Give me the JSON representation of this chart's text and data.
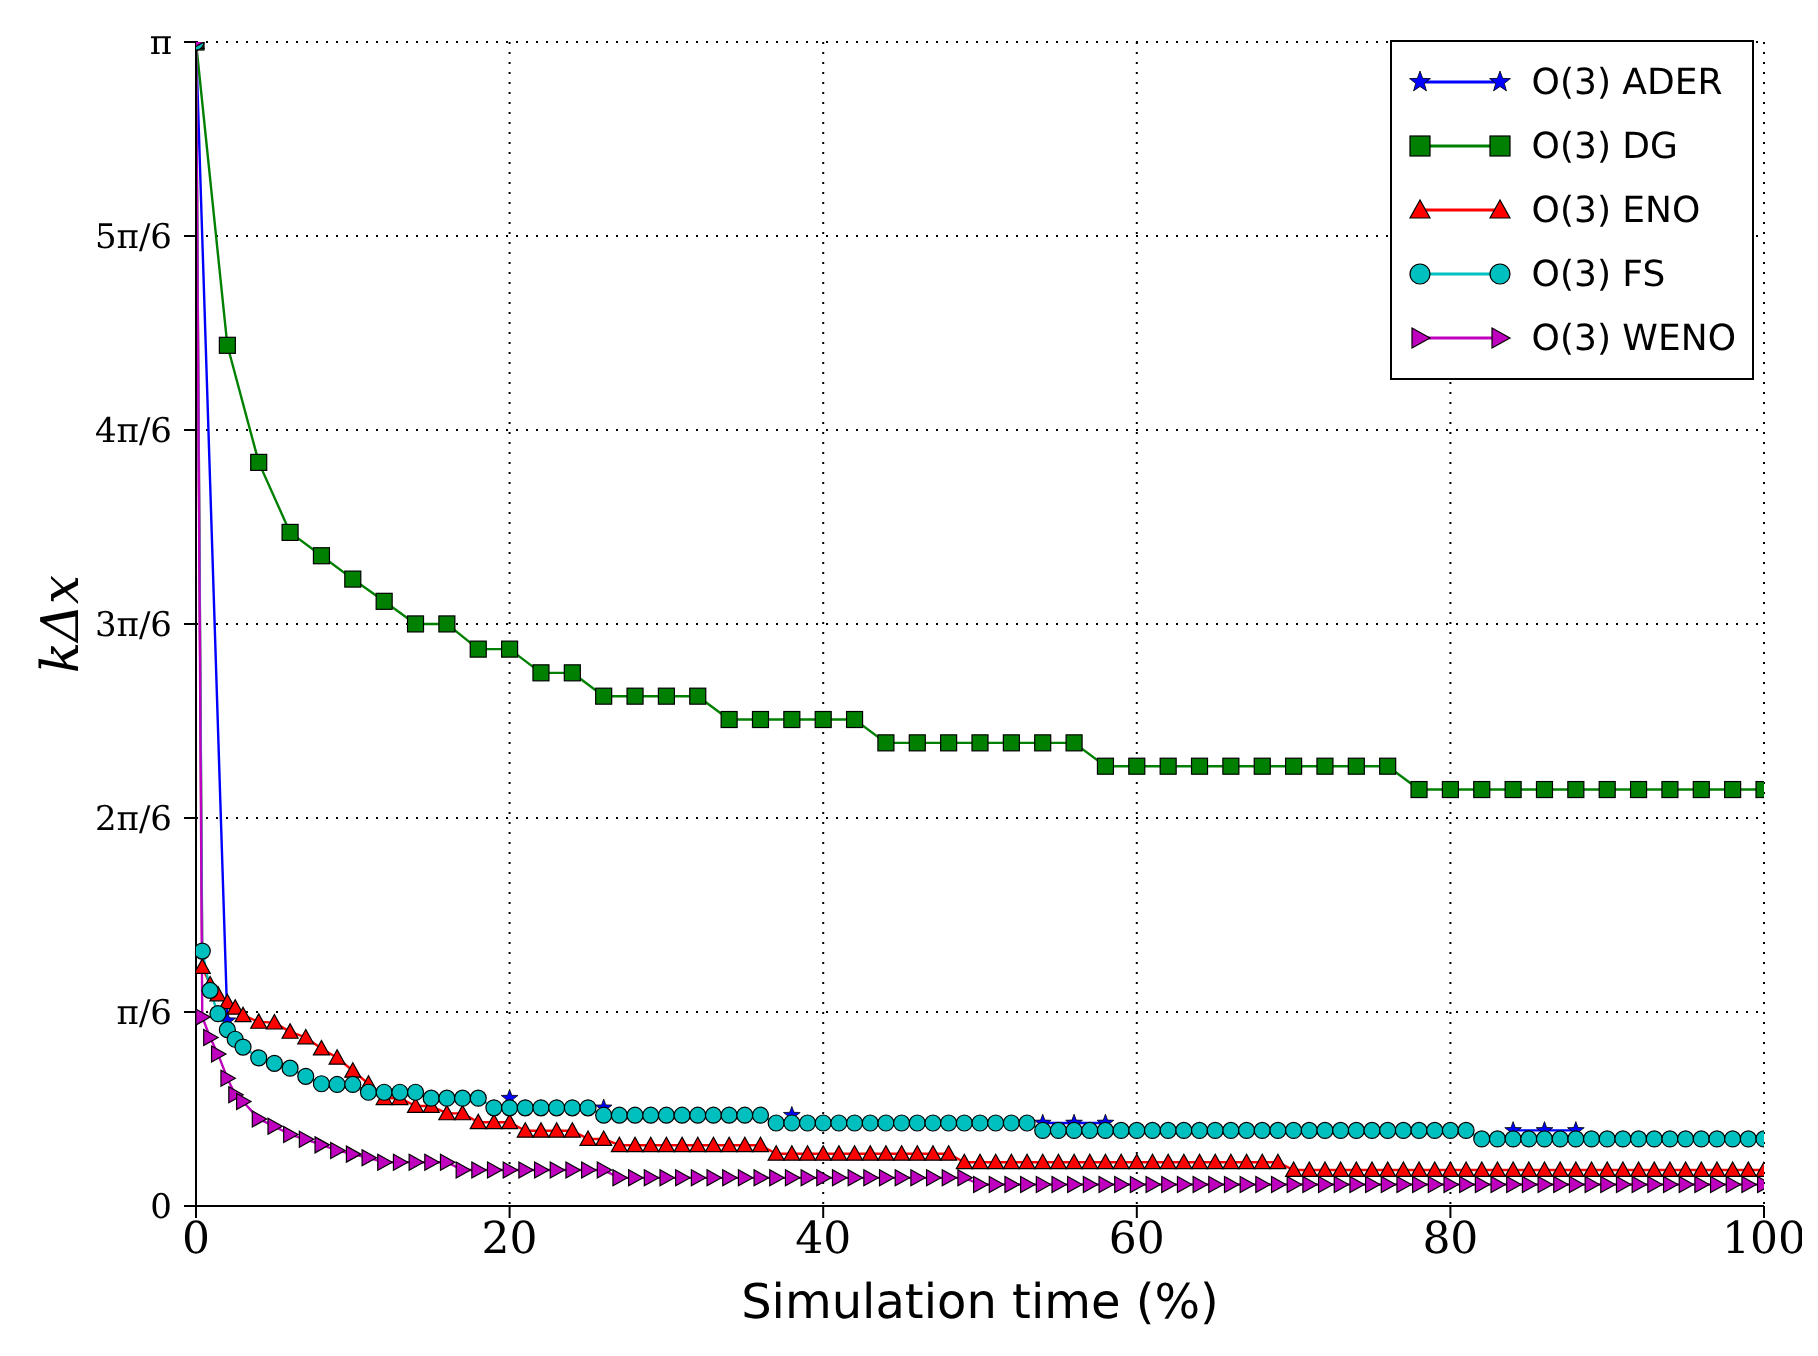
{
  "chart_data": {
    "type": "line",
    "xlabel": "Simulation time (%)",
    "ylabel": "kΔx",
    "xlim": [
      0,
      100
    ],
    "xticks": [
      0,
      20,
      40,
      60,
      80,
      100
    ],
    "ylim": [
      0,
      3.1416
    ],
    "yticks": [
      0,
      {
        "value": 0.5236,
        "label": "π/6"
      },
      {
        "value": 1.0472,
        "label": "2π/6"
      },
      {
        "value": 1.5708,
        "label": "3π/6"
      },
      {
        "value": 2.0944,
        "label": "4π/6"
      },
      {
        "value": 2.618,
        "label": "5π/6"
      },
      {
        "value": 3.1416,
        "label": "π"
      }
    ],
    "grid": true,
    "legend": "top right",
    "line_style": "solid",
    "series": [
      {
        "name": "O(3) ADER",
        "color": "#0000ff",
        "marker": "star",
        "x": [
          0,
          2,
          4,
          6,
          8,
          10,
          12,
          14,
          16,
          18,
          20,
          22,
          24,
          26,
          28,
          30,
          32,
          34,
          36,
          38,
          40,
          42,
          44,
          46,
          48,
          50,
          52,
          54,
          56,
          58,
          60,
          62,
          64,
          66,
          68,
          70,
          72,
          74,
          76,
          78,
          80,
          82,
          84,
          86,
          88
        ],
        "values": [
          3.1416,
          0.5,
          null,
          null,
          null,
          null,
          null,
          null,
          null,
          null,
          0.291,
          null,
          null,
          0.265,
          null,
          null,
          null,
          null,
          null,
          0.245,
          null,
          null,
          null,
          null,
          null,
          null,
          null,
          0.224,
          0.224,
          0.224,
          null,
          null,
          null,
          null,
          null,
          null,
          null,
          null,
          null,
          null,
          null,
          null,
          0.204,
          0.204,
          0.204
        ]
      },
      {
        "name": "O(3) DG",
        "color": "#008000",
        "marker": "square",
        "x": [
          0,
          2,
          4,
          6,
          8,
          10,
          12,
          14,
          16,
          18,
          20,
          22,
          24,
          26,
          28,
          30,
          32,
          34,
          36,
          38,
          40,
          42,
          44,
          46,
          48,
          50,
          52,
          54,
          56,
          58,
          60,
          62,
          64,
          66,
          68,
          70,
          72,
          74,
          76,
          78,
          80,
          82,
          84,
          86,
          88,
          90,
          92,
          94,
          96,
          98,
          100
        ],
        "values": [
          3.1416,
          2.323,
          2.007,
          1.818,
          1.755,
          1.692,
          1.632,
          1.571,
          1.571,
          1.503,
          1.503,
          1.439,
          1.439,
          1.376,
          1.376,
          1.376,
          1.376,
          1.313,
          1.313,
          1.313,
          1.313,
          1.313,
          1.25,
          1.25,
          1.25,
          1.25,
          1.25,
          1.25,
          1.25,
          1.187,
          1.187,
          1.187,
          1.187,
          1.187,
          1.187,
          1.187,
          1.187,
          1.187,
          1.187,
          1.124,
          1.124,
          1.124,
          1.124,
          1.124,
          1.124,
          1.124,
          1.124,
          1.124,
          1.124,
          1.124,
          1.124
        ]
      },
      {
        "name": "O(3) ENO",
        "color": "#ff0000",
        "marker": "triangle",
        "x": [
          0,
          0.4,
          0.9,
          1.4,
          2,
          2.5,
          3,
          4,
          5,
          6,
          7,
          8,
          9,
          10,
          11,
          12,
          13,
          14,
          15,
          16,
          17,
          18,
          19,
          20,
          21,
          22,
          23,
          24,
          25,
          26,
          27,
          28,
          29,
          30,
          31,
          32,
          33,
          34,
          35,
          36,
          37,
          38,
          39,
          40,
          41,
          42,
          43,
          44,
          45,
          46,
          47,
          48,
          49,
          50,
          51,
          52,
          53,
          54,
          55,
          56,
          57,
          58,
          59,
          60,
          61,
          62,
          63,
          64,
          65,
          66,
          67,
          68,
          69,
          70,
          71,
          72,
          73,
          74,
          75,
          76,
          77,
          78,
          79,
          80,
          81,
          82,
          83,
          84,
          85,
          86,
          87,
          88,
          89,
          90,
          91,
          92,
          93,
          94,
          95,
          96,
          97,
          98,
          99,
          100
        ],
        "values": [
          3.1416,
          0.645,
          0.598,
          0.571,
          0.55,
          0.535,
          0.515,
          0.497,
          0.495,
          0.47,
          0.455,
          0.425,
          0.4,
          0.365,
          0.33,
          0.291,
          0.291,
          0.27,
          0.27,
          0.25,
          0.25,
          0.226,
          0.226,
          0.226,
          0.203,
          0.203,
          0.203,
          0.203,
          0.181,
          0.181,
          0.164,
          0.164,
          0.164,
          0.164,
          0.164,
          0.164,
          0.164,
          0.164,
          0.164,
          0.164,
          0.141,
          0.141,
          0.141,
          0.141,
          0.141,
          0.141,
          0.141,
          0.141,
          0.141,
          0.141,
          0.141,
          0.141,
          0.118,
          0.118,
          0.118,
          0.118,
          0.118,
          0.118,
          0.118,
          0.118,
          0.118,
          0.118,
          0.118,
          0.118,
          0.118,
          0.118,
          0.118,
          0.118,
          0.118,
          0.118,
          0.118,
          0.118,
          0.118,
          0.097,
          0.097,
          0.097,
          0.097,
          0.097,
          0.097,
          0.097,
          0.097,
          0.097,
          0.097,
          0.097,
          0.097,
          0.097,
          0.097,
          0.097,
          0.097,
          0.097,
          0.097,
          0.097,
          0.097,
          0.097,
          0.097,
          0.097,
          0.097,
          0.097,
          0.097,
          0.097,
          0.097,
          0.097,
          0.097,
          0.097
        ]
      },
      {
        "name": "O(3) FS",
        "color": "#00bfbf",
        "marker": "circle",
        "x": [
          0,
          0.4,
          0.9,
          1.4,
          2,
          2.5,
          3,
          4,
          5,
          6,
          7,
          8,
          9,
          10,
          11,
          12,
          13,
          14,
          15,
          16,
          17,
          18,
          19,
          20,
          21,
          22,
          23,
          24,
          25,
          26,
          27,
          28,
          29,
          30,
          31,
          32,
          33,
          34,
          35,
          36,
          37,
          38,
          39,
          40,
          41,
          42,
          43,
          44,
          45,
          46,
          47,
          48,
          49,
          50,
          51,
          52,
          53,
          54,
          55,
          56,
          57,
          58,
          59,
          60,
          61,
          62,
          63,
          64,
          65,
          66,
          67,
          68,
          69,
          70,
          71,
          72,
          73,
          74,
          75,
          76,
          77,
          78,
          79,
          80,
          81,
          82,
          83,
          84,
          85,
          86,
          87,
          88,
          89,
          90,
          91,
          92,
          93,
          94,
          95,
          96,
          97,
          98,
          99,
          100
        ],
        "values": [
          3.1416,
          0.688,
          0.582,
          0.519,
          0.476,
          0.45,
          0.429,
          0.4,
          0.385,
          0.372,
          0.35,
          0.33,
          0.328,
          0.328,
          0.307,
          0.307,
          0.307,
          0.307,
          0.291,
          0.291,
          0.291,
          0.291,
          0.265,
          0.265,
          0.265,
          0.265,
          0.265,
          0.265,
          0.265,
          0.245,
          0.245,
          0.245,
          0.245,
          0.245,
          0.245,
          0.245,
          0.245,
          0.245,
          0.245,
          0.245,
          0.224,
          0.224,
          0.224,
          0.224,
          0.224,
          0.224,
          0.224,
          0.224,
          0.224,
          0.224,
          0.224,
          0.224,
          0.224,
          0.224,
          0.224,
          0.224,
          0.224,
          0.204,
          0.204,
          0.204,
          0.204,
          0.204,
          0.204,
          0.204,
          0.204,
          0.204,
          0.204,
          0.204,
          0.204,
          0.204,
          0.204,
          0.204,
          0.204,
          0.204,
          0.204,
          0.204,
          0.204,
          0.204,
          0.204,
          0.204,
          0.204,
          0.204,
          0.204,
          0.204,
          0.204,
          0.181,
          0.181,
          0.181,
          0.181,
          0.181,
          0.181,
          0.181,
          0.181,
          0.181,
          0.181,
          0.181,
          0.181,
          0.181,
          0.181,
          0.181,
          0.181,
          0.181,
          0.181,
          0.181
        ]
      },
      {
        "name": "O(3) WENO",
        "color": "#bf00bf",
        "marker": "triangle-right",
        "x": [
          0,
          0.4,
          0.9,
          1.4,
          2,
          2.5,
          3,
          4,
          5,
          6,
          7,
          8,
          9,
          10,
          11,
          12,
          13,
          14,
          15,
          16,
          17,
          18,
          19,
          20,
          21,
          22,
          23,
          24,
          25,
          26,
          27,
          28,
          29,
          30,
          31,
          32,
          33,
          34,
          35,
          36,
          37,
          38,
          39,
          40,
          41,
          42,
          43,
          44,
          45,
          46,
          47,
          48,
          49,
          50,
          51,
          52,
          53,
          54,
          55,
          56,
          57,
          58,
          59,
          60,
          61,
          62,
          63,
          64,
          65,
          66,
          67,
          68,
          69,
          70,
          71,
          72,
          73,
          74,
          75,
          76,
          77,
          78,
          79,
          80,
          81,
          82,
          83,
          84,
          85,
          86,
          87,
          88,
          89,
          90,
          91,
          92,
          93,
          94,
          95,
          96,
          97,
          98,
          99,
          100
        ],
        "values": [
          3.1416,
          0.51,
          0.455,
          0.41,
          0.345,
          0.3,
          0.282,
          0.235,
          0.215,
          0.193,
          0.18,
          0.165,
          0.15,
          0.14,
          0.13,
          0.118,
          0.118,
          0.118,
          0.118,
          0.118,
          0.097,
          0.097,
          0.097,
          0.097,
          0.097,
          0.097,
          0.097,
          0.097,
          0.097,
          0.097,
          0.076,
          0.076,
          0.076,
          0.076,
          0.076,
          0.076,
          0.076,
          0.076,
          0.076,
          0.076,
          0.076,
          0.076,
          0.076,
          0.076,
          0.076,
          0.076,
          0.076,
          0.076,
          0.076,
          0.076,
          0.076,
          0.076,
          0.076,
          0.058,
          0.058,
          0.058,
          0.058,
          0.058,
          0.058,
          0.058,
          0.058,
          0.058,
          0.058,
          0.058,
          0.058,
          0.058,
          0.058,
          0.058,
          0.058,
          0.058,
          0.058,
          0.058,
          0.058,
          0.058,
          0.058,
          0.058,
          0.058,
          0.058,
          0.058,
          0.058,
          0.058,
          0.058,
          0.058,
          0.058,
          0.058,
          0.058,
          0.058,
          0.058,
          0.058,
          0.058,
          0.058,
          0.058,
          0.058,
          0.058,
          0.058,
          0.058,
          0.058,
          0.058,
          0.058,
          0.058,
          0.058,
          0.058,
          0.058,
          0.058
        ]
      }
    ]
  }
}
